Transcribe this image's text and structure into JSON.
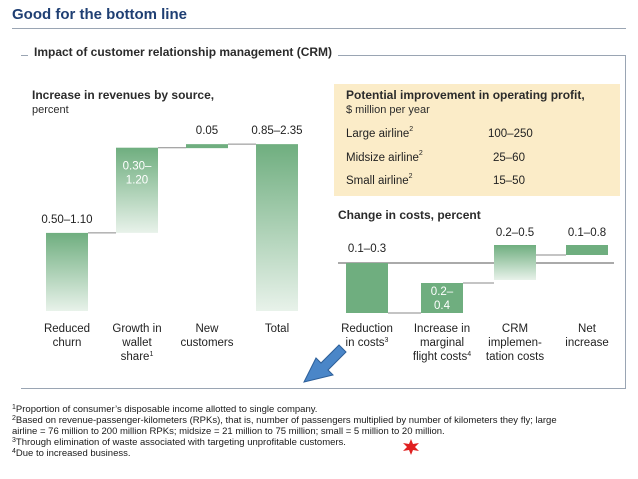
{
  "page": {
    "title": "Good for the bottom line",
    "panel_title": "Impact of customer relationship management (CRM)"
  },
  "revenue": {
    "heading": "Increase in revenues by source,",
    "unit": "percent"
  },
  "profit": {
    "heading": "Potential improvement in operating profit,",
    "unit": "$ million per year",
    "rows": [
      {
        "label": "Large airline",
        "note": "2",
        "value": "100–250"
      },
      {
        "label": "Midsize airline",
        "note": "2",
        "value": "25–60"
      },
      {
        "label": "Small airline",
        "note": "2",
        "value": "15–50"
      }
    ]
  },
  "costs": {
    "heading": "Change in costs, percent"
  },
  "chart_data": [
    {
      "type": "bar",
      "variant": "waterfall",
      "title": "Increase in revenues by source, percent",
      "categories": [
        {
          "lines": [
            "Reduced",
            "churn"
          ],
          "note": ""
        },
        {
          "lines": [
            "Growth in",
            "wallet",
            "share"
          ],
          "note": "1"
        },
        {
          "lines": [
            "New",
            "customers"
          ],
          "note": ""
        },
        {
          "lines": [
            "Total"
          ],
          "note": ""
        }
      ],
      "ranges": [
        [
          0.5,
          1.1
        ],
        [
          0.3,
          1.2
        ],
        [
          0.05,
          0.05
        ],
        [
          0.85,
          2.35
        ]
      ],
      "labels": [
        "0.50–1.10",
        "0.30–1.20",
        "0.05",
        "0.85–2.35"
      ],
      "colors": {
        "solid": "#6fae7f",
        "gradient_top": "#6fae7f",
        "gradient_bottom": "#e8f2ea"
      }
    },
    {
      "type": "bar",
      "variant": "waterfall",
      "title": "Change in costs, percent",
      "categories": [
        {
          "lines": [
            "Reduction",
            "in costs"
          ],
          "note": "3"
        },
        {
          "lines": [
            "Increase in",
            "marginal",
            "flight costs"
          ],
          "note": "4"
        },
        {
          "lines": [
            "CRM",
            "implemen-",
            "tation costs"
          ],
          "note": ""
        },
        {
          "lines": [
            "Net",
            "increase"
          ],
          "note": ""
        }
      ],
      "ranges": [
        [
          -0.1,
          -0.3
        ],
        [
          -0.2,
          -0.4
        ],
        [
          0.2,
          0.5
        ],
        [
          0.1,
          0.8
        ]
      ],
      "labels": [
        "0.1–0.3",
        "0.2–0.4",
        "0.2–0.5",
        "0.1–0.8"
      ],
      "colors": {
        "solid": "#6fae7f",
        "gradient_top": "#6fae7f",
        "gradient_bottom": "#e8f2ea"
      }
    }
  ],
  "footnotes": [
    {
      "mark": "1",
      "text": "Proportion of consumer’s disposable income allotted to single company."
    },
    {
      "mark": "2",
      "text": "Based on revenue-passenger-kilometers (RPKs), that is, number of passengers multiplied by number of kilometers they fly; large"
    },
    {
      "mark": "",
      "text": "airline = 76 million to 200 million RPKs; midsize = 21 million to 75 million; small = 5 million to 20 million."
    },
    {
      "mark": "3",
      "text": "Through elimination of waste associated with targeting unprofitable customers."
    },
    {
      "mark": "4",
      "text": "Due to increased business."
    }
  ],
  "annotation_colors": {
    "arrow": "#4a86c8",
    "star": "#e02020"
  }
}
